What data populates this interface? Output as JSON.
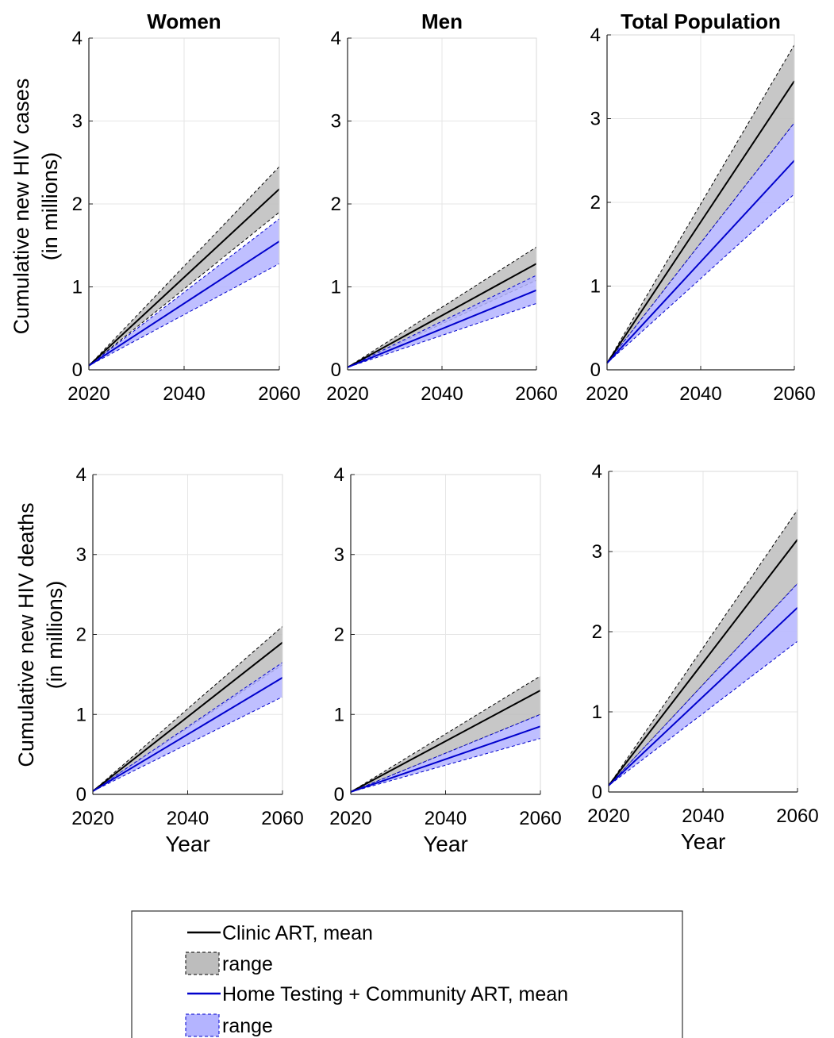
{
  "figure": {
    "column_titles": [
      "Women",
      "Men",
      "Total Population"
    ],
    "row_ylabels": [
      [
        "Cumulative new HIV cases",
        "(in millions)"
      ],
      [
        "Cumulative new HIV deaths",
        "(in millions)"
      ]
    ],
    "xlabel": "Year"
  },
  "legend": {
    "items": [
      {
        "label": "Clinic ART, mean",
        "kind": "line",
        "color": "#000000"
      },
      {
        "label": "range",
        "kind": "patch",
        "fill": "#bdbdbd",
        "edge": "#000000"
      },
      {
        "label": "Home Testing + Community ART, mean",
        "kind": "line",
        "color": "#0000cc"
      },
      {
        "label": "range",
        "kind": "patch",
        "fill": "#b4b4ff",
        "edge": "#0000cc"
      }
    ]
  },
  "colors": {
    "clinic_mean": "#000000",
    "clinic_range_fill": "#bdbdbd",
    "home_mean": "#0000cc",
    "home_range_fill": "#b4b4ff",
    "grid": "#e6e6e6"
  },
  "chart_data": [
    {
      "type": "area",
      "title": "Women",
      "ylabel": "Cumulative new HIV cases (in millions)",
      "xlabel": "",
      "x": [
        2020,
        2060
      ],
      "xticks": [
        2020,
        2040,
        2060
      ],
      "xlim": [
        2020,
        2060
      ],
      "ylim": [
        0,
        4
      ],
      "yticks": [
        0,
        1,
        2,
        3,
        4
      ],
      "grid": true,
      "series": [
        {
          "name": "Clinic ART, mean",
          "values": [
            0.05,
            2.18
          ]
        },
        {
          "name": "range",
          "lower": [
            0.05,
            1.9
          ],
          "upper": [
            0.05,
            2.45
          ]
        },
        {
          "name": "Home Testing + Community ART, mean",
          "values": [
            0.05,
            1.55
          ]
        },
        {
          "name": "range",
          "lower": [
            0.05,
            1.28
          ],
          "upper": [
            0.05,
            1.82
          ]
        }
      ]
    },
    {
      "type": "area",
      "title": "Men",
      "ylabel": "",
      "xlabel": "",
      "x": [
        2020,
        2060
      ],
      "xticks": [
        2020,
        2040,
        2060
      ],
      "xlim": [
        2020,
        2060
      ],
      "ylim": [
        0,
        4
      ],
      "yticks": [
        0,
        1,
        2,
        3,
        4
      ],
      "grid": true,
      "series": [
        {
          "name": "Clinic ART, mean",
          "values": [
            0.03,
            1.28
          ]
        },
        {
          "name": "range",
          "lower": [
            0.03,
            1.08
          ],
          "upper": [
            0.03,
            1.48
          ]
        },
        {
          "name": "Home Testing + Community ART, mean",
          "values": [
            0.03,
            0.96
          ]
        },
        {
          "name": "range",
          "lower": [
            0.03,
            0.8
          ],
          "upper": [
            0.03,
            1.14
          ]
        }
      ]
    },
    {
      "type": "area",
      "title": "Total Population",
      "ylabel": "",
      "xlabel": "",
      "x": [
        2020,
        2060
      ],
      "xticks": [
        2020,
        2040,
        2060
      ],
      "xlim": [
        2020,
        2060
      ],
      "ylim": [
        0,
        4
      ],
      "yticks": [
        0,
        1,
        2,
        3,
        4
      ],
      "grid": true,
      "series": [
        {
          "name": "Clinic ART, mean",
          "values": [
            0.08,
            3.45
          ]
        },
        {
          "name": "range",
          "lower": [
            0.08,
            2.95
          ],
          "upper": [
            0.08,
            3.88
          ]
        },
        {
          "name": "Home Testing + Community ART, mean",
          "values": [
            0.08,
            2.5
          ]
        },
        {
          "name": "range",
          "lower": [
            0.08,
            2.1
          ],
          "upper": [
            0.08,
            2.95
          ]
        }
      ]
    },
    {
      "type": "area",
      "title": "",
      "ylabel": "Cumulative new HIV deaths (in millions)",
      "xlabel": "Year",
      "x": [
        2020,
        2060
      ],
      "xticks": [
        2020,
        2040,
        2060
      ],
      "xlim": [
        2020,
        2060
      ],
      "ylim": [
        0,
        4
      ],
      "yticks": [
        0,
        1,
        2,
        3,
        4
      ],
      "grid": true,
      "series": [
        {
          "name": "Clinic ART, mean",
          "values": [
            0.04,
            1.9
          ]
        },
        {
          "name": "range",
          "lower": [
            0.04,
            1.62
          ],
          "upper": [
            0.04,
            2.1
          ]
        },
        {
          "name": "Home Testing + Community ART, mean",
          "values": [
            0.04,
            1.46
          ]
        },
        {
          "name": "range",
          "lower": [
            0.04,
            1.22
          ],
          "upper": [
            0.04,
            1.65
          ]
        }
      ]
    },
    {
      "type": "area",
      "title": "",
      "ylabel": "",
      "xlabel": "Year",
      "x": [
        2020,
        2060
      ],
      "xticks": [
        2020,
        2040,
        2060
      ],
      "xlim": [
        2020,
        2060
      ],
      "ylim": [
        0,
        4
      ],
      "yticks": [
        0,
        1,
        2,
        3,
        4
      ],
      "grid": true,
      "series": [
        {
          "name": "Clinic ART, mean",
          "values": [
            0.03,
            1.3
          ]
        },
        {
          "name": "range",
          "lower": [
            0.03,
            1.0
          ],
          "upper": [
            0.03,
            1.48
          ]
        },
        {
          "name": "Home Testing + Community ART, mean",
          "values": [
            0.03,
            0.85
          ]
        },
        {
          "name": "range",
          "lower": [
            0.03,
            0.7
          ],
          "upper": [
            0.03,
            1.0
          ]
        }
      ]
    },
    {
      "type": "area",
      "title": "",
      "ylabel": "",
      "xlabel": "Year",
      "x": [
        2020,
        2060
      ],
      "xticks": [
        2020,
        2040,
        2060
      ],
      "xlim": [
        2020,
        2060
      ],
      "ylim": [
        0,
        4
      ],
      "yticks": [
        0,
        1,
        2,
        3,
        4
      ],
      "grid": true,
      "series": [
        {
          "name": "Clinic ART, mean",
          "values": [
            0.08,
            3.15
          ]
        },
        {
          "name": "range",
          "lower": [
            0.08,
            2.6
          ],
          "upper": [
            0.08,
            3.52
          ]
        },
        {
          "name": "Home Testing + Community ART, mean",
          "values": [
            0.08,
            2.3
          ]
        },
        {
          "name": "range",
          "lower": [
            0.08,
            1.88
          ],
          "upper": [
            0.08,
            2.6
          ]
        }
      ]
    }
  ]
}
